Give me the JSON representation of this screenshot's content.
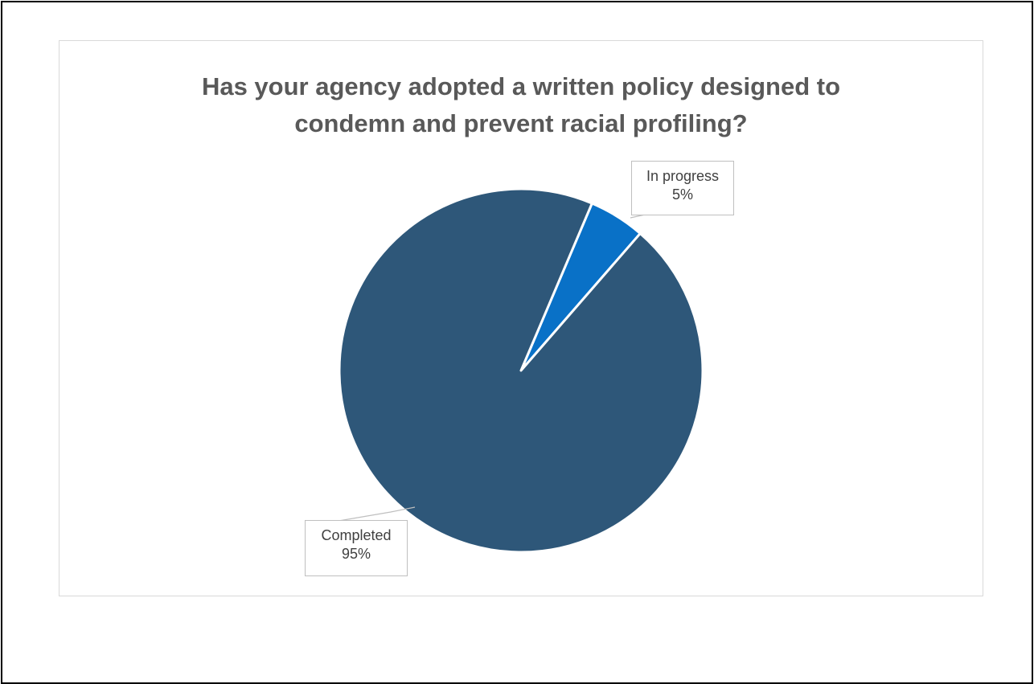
{
  "chart_data": {
    "type": "pie",
    "title_lines": [
      "Has your agency adopted a written policy designed to",
      "condemn and prevent racial profiling?"
    ],
    "slices": [
      {
        "name": "Completed",
        "value": 95,
        "label": "95%",
        "color": "#2e5779"
      },
      {
        "name": "In progress",
        "value": 5,
        "label": "5%",
        "color": "#0971c7"
      }
    ],
    "legend": "none",
    "data_labels": "callout"
  }
}
